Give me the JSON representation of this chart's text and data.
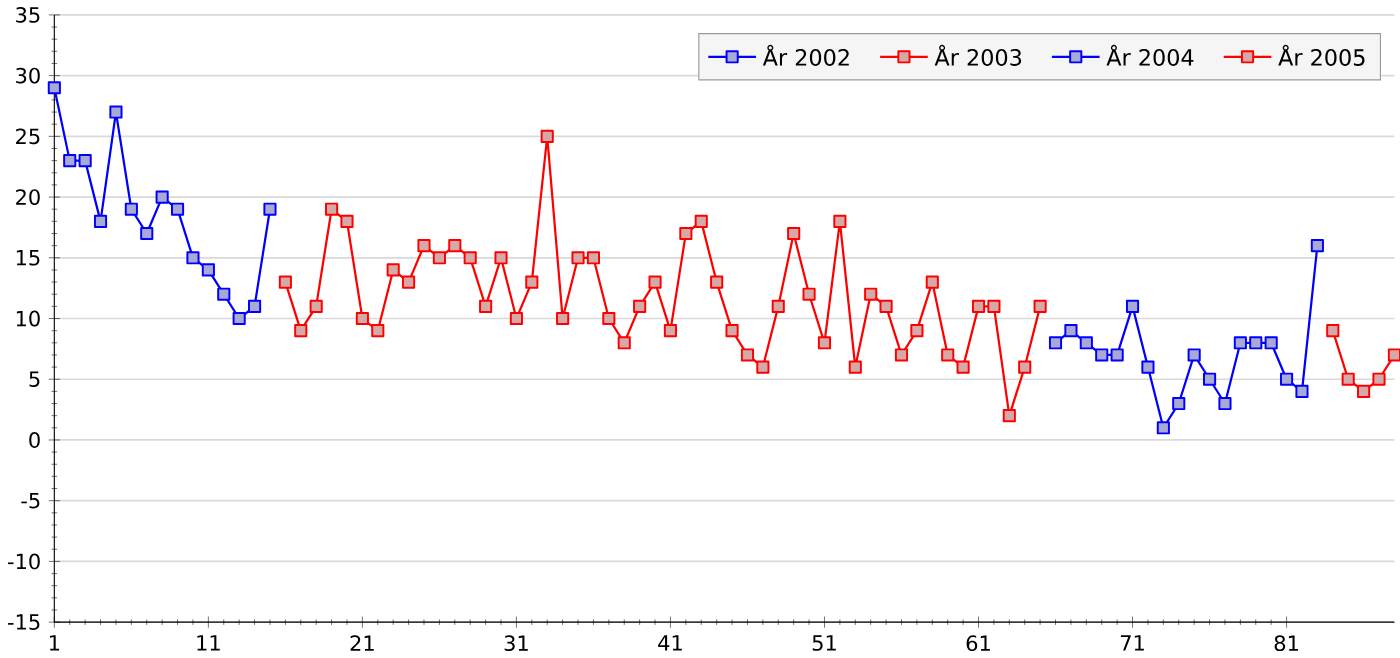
{
  "chart_data": {
    "type": "line",
    "marker": "square",
    "grid": "y",
    "legend": "top right",
    "xlim": [
      1,
      88
    ],
    "xticks": [
      1,
      11,
      21,
      31,
      41,
      51,
      61,
      71,
      81
    ],
    "ylim": [
      -15,
      35
    ],
    "yticks": [
      -15,
      -10,
      -5,
      0,
      5,
      10,
      15,
      20,
      25,
      30,
      35
    ],
    "series": [
      {
        "name": "År 2002",
        "color": "#0000ff",
        "x": [
          1,
          2,
          3,
          4,
          5,
          6,
          7,
          8,
          9,
          10,
          11,
          12,
          13,
          14,
          15
        ],
        "values": [
          29,
          23,
          23,
          18,
          27,
          19,
          17,
          20,
          19,
          15,
          14,
          12,
          10,
          11,
          19
        ]
      },
      {
        "name": "År 2003",
        "color": "#ff0000",
        "x": [
          16,
          17,
          18,
          19,
          20,
          21,
          22,
          23,
          24,
          25,
          26,
          27,
          28,
          29,
          30,
          31,
          32,
          33,
          34,
          35,
          36,
          37,
          38,
          39,
          40,
          41,
          42,
          43,
          44,
          45,
          46,
          47,
          48,
          49,
          50,
          51,
          52,
          53,
          54,
          55,
          56,
          57,
          58,
          59,
          60,
          61,
          62,
          63,
          64,
          65
        ],
        "values": [
          13,
          9,
          11,
          19,
          18,
          10,
          9,
          14,
          13,
          16,
          15,
          16,
          15,
          11,
          15,
          10,
          13,
          25,
          10,
          15,
          15,
          10,
          8,
          11,
          13,
          9,
          17,
          18,
          13,
          9,
          7,
          6,
          11,
          17,
          12,
          8,
          18,
          6,
          12,
          11,
          7,
          9,
          13,
          7,
          6,
          11,
          11,
          2,
          6,
          11
        ]
      },
      {
        "name": "År 2004",
        "color": "#0000ff",
        "x": [
          66,
          67,
          68,
          69,
          70,
          71,
          72,
          73,
          74,
          75,
          76,
          77,
          78,
          79,
          80,
          81,
          82,
          83
        ],
        "values": [
          8,
          9,
          8,
          7,
          7,
          11,
          6,
          1,
          3,
          7,
          5,
          3,
          8,
          8,
          8,
          5,
          4,
          16
        ]
      },
      {
        "name": "År 2005",
        "color": "#ff0000",
        "x": [
          84,
          85,
          86,
          87,
          88
        ],
        "values": [
          9,
          5,
          4,
          5,
          7
        ]
      }
    ]
  }
}
